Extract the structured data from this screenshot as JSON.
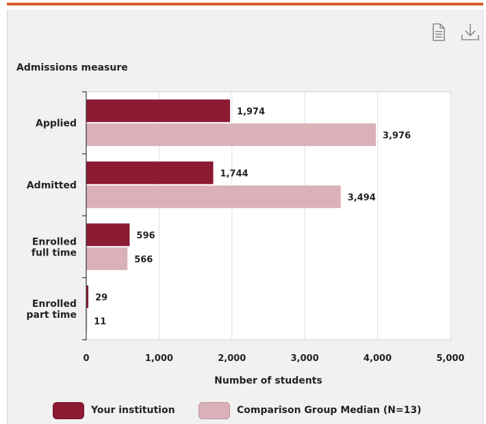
{
  "toolbar": {
    "document_icon": "document-icon",
    "download_icon": "download-icon"
  },
  "chart_data": {
    "type": "bar",
    "orientation": "horizontal",
    "title": "Admissions measure",
    "xlabel": "Number of students",
    "ylabel": "",
    "xlim": [
      0,
      5000
    ],
    "xticks": [
      "0",
      "1,000",
      "2,000",
      "3,000",
      "4,000",
      "5,000"
    ],
    "categories": [
      [
        "Applied"
      ],
      [
        "Admitted"
      ],
      [
        "Enrolled",
        "full time"
      ],
      [
        "Enrolled",
        "part time"
      ]
    ],
    "series": [
      {
        "name": "Your institution",
        "color": "#8b1a32",
        "values": [
          1974,
          1744,
          596,
          29
        ],
        "labels": [
          "1,974",
          "1,744",
          "596",
          "29"
        ]
      },
      {
        "name": "Comparison Group Median (N=13)",
        "color": "#dbb1b9",
        "values": [
          3976,
          3494,
          566,
          11
        ],
        "labels": [
          "3,976",
          "3,494",
          "566",
          "11"
        ]
      }
    ],
    "grid": true,
    "legend_position": "bottom"
  }
}
